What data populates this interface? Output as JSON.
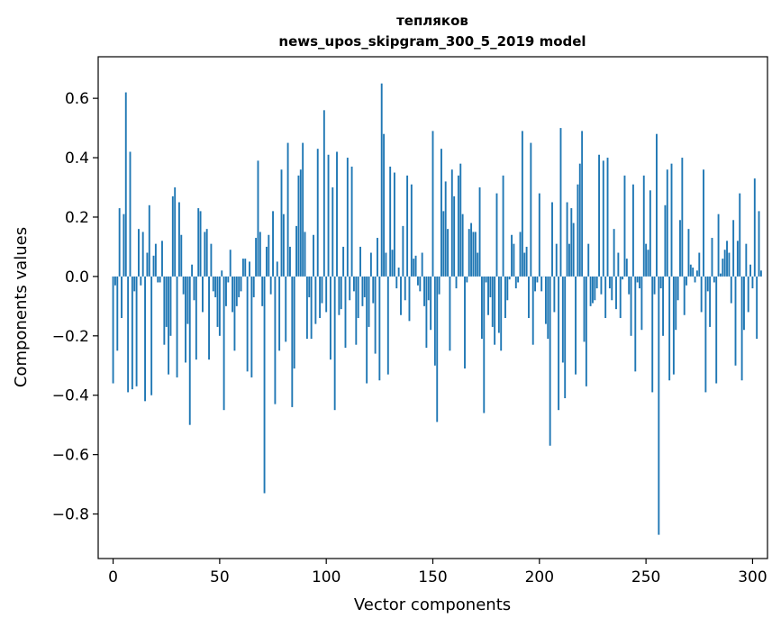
{
  "chart_data": {
    "type": "bar",
    "title_line1": "тепляков",
    "title_line2": "news_upos_skipgram_300_5_2019 model",
    "xlabel": "Vector components",
    "ylabel": "Components values",
    "xlim": [
      -7,
      307
    ],
    "ylim": [
      -0.95,
      0.74
    ],
    "xticks": [
      0,
      50,
      100,
      150,
      200,
      250,
      300
    ],
    "yticks": [
      -0.8,
      -0.6,
      -0.4,
      -0.2,
      0.0,
      0.2,
      0.4,
      0.6
    ],
    "ytick_labels": [
      "−0.8",
      "−0.6",
      "−0.4",
      "−0.2",
      "0.0",
      "0.2",
      "0.4",
      "0.6"
    ],
    "bar_color": "#1f77b4",
    "values": [
      -0.36,
      -0.03,
      -0.25,
      0.23,
      -0.14,
      0.21,
      0.62,
      -0.39,
      0.42,
      -0.38,
      -0.05,
      -0.37,
      0.16,
      -0.03,
      0.15,
      -0.42,
      0.08,
      0.24,
      -0.4,
      0.07,
      0.11,
      -0.02,
      -0.02,
      0.12,
      -0.23,
      -0.17,
      -0.33,
      -0.2,
      0.27,
      0.3,
      -0.34,
      0.25,
      0.14,
      -0.06,
      -0.29,
      -0.16,
      -0.5,
      0.04,
      -0.08,
      -0.28,
      0.23,
      0.22,
      -0.12,
      0.15,
      0.16,
      -0.28,
      0.11,
      -0.05,
      -0.07,
      -0.17,
      -0.2,
      0.02,
      -0.45,
      -0.1,
      -0.02,
      0.09,
      -0.12,
      -0.25,
      -0.1,
      -0.07,
      -0.05,
      0.06,
      0.06,
      -0.32,
      0.05,
      -0.34,
      -0.07,
      0.13,
      0.39,
      0.15,
      -0.1,
      -0.73,
      0.1,
      0.14,
      -0.06,
      0.22,
      -0.43,
      0.05,
      -0.25,
      0.36,
      0.21,
      -0.22,
      0.45,
      0.1,
      -0.44,
      -0.31,
      0.17,
      0.34,
      0.36,
      0.45,
      0.15,
      -0.21,
      -0.07,
      -0.21,
      0.14,
      -0.16,
      0.43,
      -0.14,
      -0.09,
      0.56,
      -0.12,
      0.41,
      -0.28,
      0.3,
      -0.45,
      0.42,
      -0.13,
      -0.11,
      0.1,
      -0.24,
      0.4,
      -0.08,
      0.37,
      -0.05,
      -0.23,
      -0.14,
      0.1,
      -0.1,
      -0.07,
      -0.36,
      -0.17,
      0.08,
      -0.09,
      -0.26,
      0.13,
      -0.35,
      0.65,
      0.48,
      0.08,
      -0.33,
      0.37,
      0.09,
      0.35,
      -0.04,
      0.03,
      -0.13,
      0.17,
      -0.08,
      0.34,
      -0.15,
      0.31,
      0.06,
      0.07,
      -0.03,
      -0.05,
      0.08,
      -0.1,
      -0.24,
      -0.08,
      -0.18,
      0.49,
      -0.3,
      -0.49,
      -0.06,
      0.43,
      0.22,
      0.32,
      0.16,
      -0.25,
      0.36,
      0.27,
      -0.04,
      0.34,
      0.38,
      0.21,
      -0.31,
      -0.02,
      0.16,
      0.18,
      0.15,
      0.15,
      0.08,
      0.3,
      -0.21,
      -0.46,
      -0.02,
      -0.13,
      -0.07,
      -0.17,
      -0.23,
      0.28,
      -0.19,
      -0.25,
      0.34,
      -0.14,
      -0.08,
      -0.01,
      0.14,
      0.11,
      -0.04,
      -0.02,
      0.15,
      0.49,
      0.08,
      0.1,
      -0.14,
      0.45,
      -0.23,
      -0.05,
      -0.02,
      0.28,
      -0.05,
      0.0,
      -0.16,
      -0.21,
      -0.57,
      0.25,
      -0.12,
      0.11,
      -0.45,
      0.5,
      -0.29,
      -0.41,
      0.25,
      0.11,
      0.23,
      0.18,
      -0.33,
      0.31,
      0.38,
      0.49,
      -0.22,
      -0.37,
      0.11,
      -0.1,
      -0.09,
      -0.08,
      -0.04,
      0.41,
      -0.06,
      0.39,
      -0.14,
      0.4,
      -0.04,
      -0.08,
      0.16,
      -0.11,
      0.08,
      -0.14,
      -0.01,
      0.34,
      0.06,
      -0.06,
      -0.2,
      0.31,
      -0.32,
      -0.02,
      -0.04,
      -0.18,
      0.34,
      0.11,
      0.09,
      0.29,
      -0.39,
      -0.06,
      0.48,
      -0.87,
      -0.04,
      -0.2,
      0.24,
      0.36,
      -0.35,
      0.38,
      -0.33,
      -0.18,
      -0.08,
      0.19,
      0.4,
      -0.13,
      -0.03,
      0.16,
      0.04,
      0.03,
      -0.02,
      0.02,
      0.08,
      -0.12,
      0.36,
      -0.39,
      -0.05,
      -0.17,
      0.13,
      -0.02,
      -0.36,
      0.21,
      0.01,
      0.06,
      0.09,
      0.12,
      0.08,
      -0.09,
      0.19,
      -0.3,
      0.12,
      0.28,
      -0.35,
      -0.18,
      0.11,
      -0.12,
      0.04,
      -0.04,
      0.33,
      -0.21,
      0.22,
      0.02
    ]
  }
}
